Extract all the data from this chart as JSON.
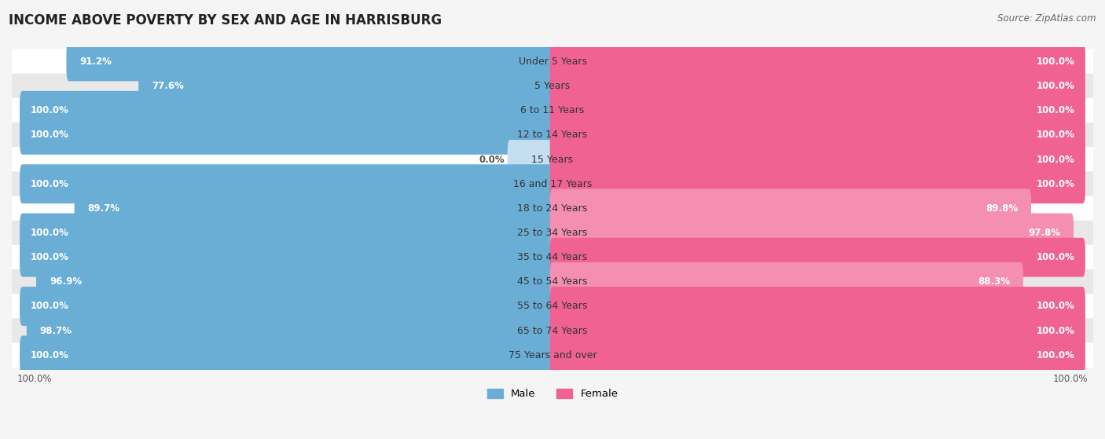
{
  "title": "INCOME ABOVE POVERTY BY SEX AND AGE IN HARRISBURG",
  "source": "Source: ZipAtlas.com",
  "categories": [
    "Under 5 Years",
    "5 Years",
    "6 to 11 Years",
    "12 to 14 Years",
    "15 Years",
    "16 and 17 Years",
    "18 to 24 Years",
    "25 to 34 Years",
    "35 to 44 Years",
    "45 to 54 Years",
    "55 to 64 Years",
    "65 to 74 Years",
    "75 Years and over"
  ],
  "male_values": [
    91.2,
    77.6,
    100.0,
    100.0,
    0.0,
    100.0,
    89.7,
    100.0,
    100.0,
    96.9,
    100.0,
    98.7,
    100.0
  ],
  "female_values": [
    100.0,
    100.0,
    100.0,
    100.0,
    100.0,
    100.0,
    89.8,
    97.8,
    100.0,
    88.3,
    100.0,
    100.0,
    100.0
  ],
  "male_color_full": "#6aaed6",
  "male_color_partial": "#6aaed6",
  "female_color_full": "#f06292",
  "female_color_partial": "#f48fb1",
  "male_color_zero": "#c6dff0",
  "bar_height": 0.6,
  "background_color": "#f5f5f5",
  "row_color_even": "#ffffff",
  "row_color_odd": "#e8e8e8",
  "title_fontsize": 12,
  "label_fontsize": 9,
  "value_fontsize": 8.5,
  "source_fontsize": 8.5,
  "xlim": 100
}
